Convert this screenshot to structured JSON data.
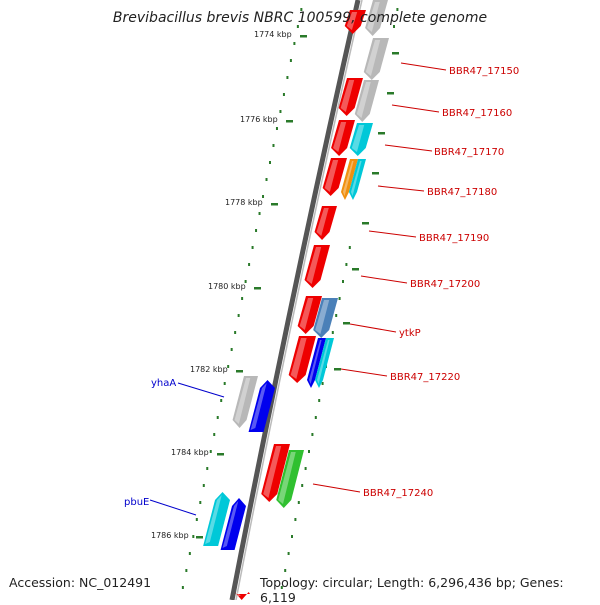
{
  "title": "Brevibacillus brevis NBRC 100599, complete genome",
  "footer": {
    "accession": "Accession: NC_012491",
    "summary": "Topology: circular; Length: 6,296,436 bp; Genes: 6,119"
  },
  "colors": {
    "red": "#ee0000",
    "gray": "#b8b8b8",
    "cyan": "#00c8d8",
    "orange": "#f09010",
    "blue": "#0000ee",
    "steelblue": "#4a80b8",
    "green": "#30c030",
    "tick_green": "#2a7a2a",
    "label_red": "#cc0000",
    "label_blue": "#0000cc"
  },
  "kbp_ticks": [
    "1774 kbp",
    "1776 kbp",
    "1778 kbp",
    "1780 kbp",
    "1782 kbp",
    "1784 kbp",
    "1786 kbp"
  ],
  "gene_labels_right": [
    "BBR47_17150",
    "BBR47_17160",
    "BBR47_17170",
    "BBR47_17180",
    "BBR47_17190",
    "BBR47_17200",
    "ytkP",
    "BBR47_17220",
    "BBR47_17240"
  ],
  "gene_labels_left": [
    "yhaA",
    "pbuE"
  ]
}
